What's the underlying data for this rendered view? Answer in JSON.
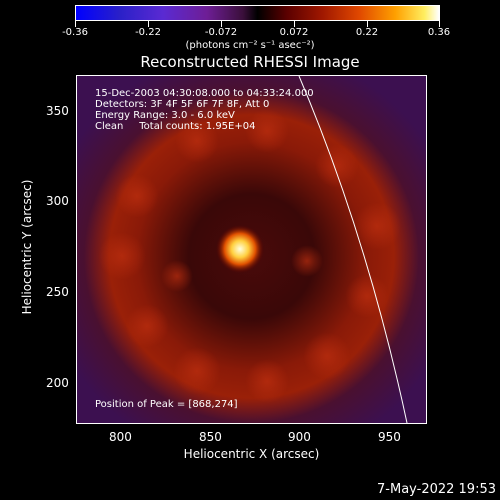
{
  "colorbar": {
    "tick_labels": [
      "-0.36",
      "-0.22",
      "-0.072",
      "0.072",
      "0.22",
      "0.36"
    ],
    "units_label": "(photons cm⁻² s⁻¹ asec⁻²)"
  },
  "title": "Reconstructed RHESSI Image",
  "annotations": {
    "time_range": "15-Dec-2003 04:30:08.000 to 04:33:24.000",
    "detectors": "Detectors: 3F 4F 5F 6F 7F 8F, Att 0",
    "energy": "Energy Range: 3.0 - 6.0 keV",
    "clean": "Clean     Total counts: 1.95E+04",
    "peak": "Position of Peak = [868,274]"
  },
  "axes": {
    "xlabel": "Heliocentric X (arcsec)",
    "ylabel": "Heliocentric Y (arcsec)",
    "xticks": [
      "800",
      "850",
      "900",
      "950"
    ],
    "yticks": [
      "350",
      "300",
      "250",
      "200"
    ]
  },
  "footer_date": "7-May-2022 19:53",
  "colors": {
    "background": "#000000",
    "limb_line": "#ffffff",
    "peak": "#ffffe0"
  }
}
